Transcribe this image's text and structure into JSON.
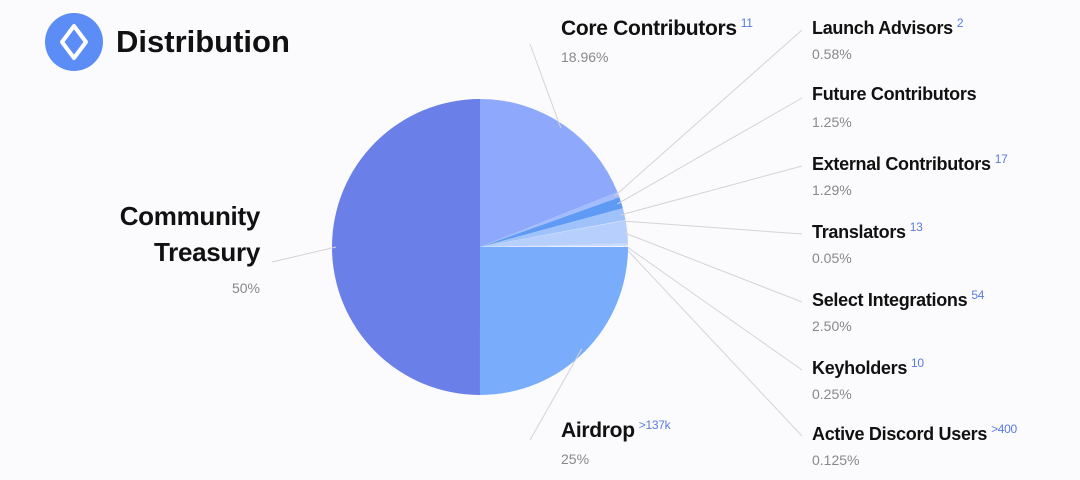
{
  "title": "Distribution",
  "chart_data": {
    "type": "pie",
    "categories": [
      "Core Contributors",
      "Launch Advisors",
      "Future Contributors",
      "External Contributors",
      "Translators",
      "Select Integrations",
      "Keyholders",
      "Active Discord Users",
      "Airdrop",
      "Community Treasury"
    ],
    "values": [
      18.96,
      0.58,
      1.25,
      1.29,
      0.05,
      2.5,
      0.25,
      0.125,
      25,
      50
    ],
    "value_labels": [
      "18.96%",
      "0.58%",
      "1.25%",
      "1.29%",
      "0.05%",
      "2.50%",
      "0.25%",
      "0.125%",
      "25%",
      "50%"
    ],
    "counts": [
      "11",
      "2",
      null,
      "17",
      "13",
      "54",
      "10",
      ">400",
      ">137k",
      null
    ],
    "colors": [
      "#8ea9fb",
      "#a3bcfb",
      "#5f9bf5",
      "#9fc2fb",
      "#dbe6fd",
      "#b6cffc",
      "#c9dbfd",
      "#eef3fe",
      "#79adfb",
      "#6a7fe8"
    ]
  }
}
